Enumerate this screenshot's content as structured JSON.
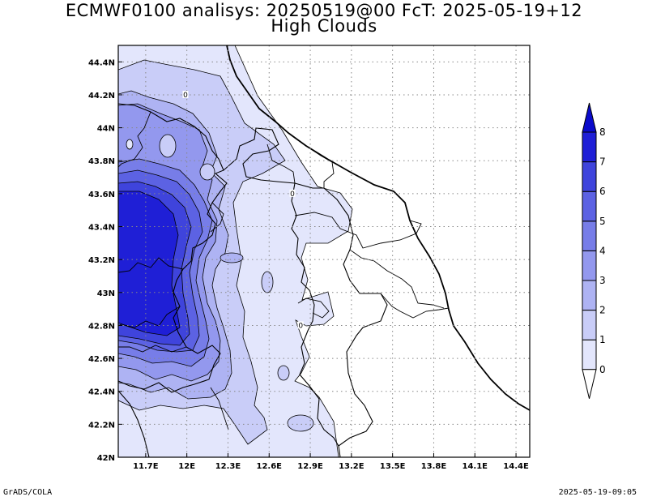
{
  "title": "ECMWF0100 analisys: 20250519@00 FcT: 2025-05-19+12",
  "subtitle": "High Clouds",
  "footer": {
    "left": "GrADS/COLA",
    "right": "2025-05-19-09:05"
  },
  "axes": {
    "lon_min": 11.5,
    "lon_max": 14.5,
    "lat_min": 42.0,
    "lat_max": 44.5,
    "lon_ticks": [
      {
        "value": 11.7,
        "label": "11.7E"
      },
      {
        "value": 12.0,
        "label": "12E"
      },
      {
        "value": 12.3,
        "label": "12.3E"
      },
      {
        "value": 12.6,
        "label": "12.6E"
      },
      {
        "value": 12.9,
        "label": "12.9E"
      },
      {
        "value": 13.2,
        "label": "13.2E"
      },
      {
        "value": 13.5,
        "label": "13.5E"
      },
      {
        "value": 13.8,
        "label": "13.8E"
      },
      {
        "value": 14.1,
        "label": "14.1E"
      },
      {
        "value": 14.4,
        "label": "14.4E"
      }
    ],
    "lat_ticks": [
      {
        "value": 42.0,
        "label": "42N"
      },
      {
        "value": 42.2,
        "label": "42.2N"
      },
      {
        "value": 42.4,
        "label": "42.4N"
      },
      {
        "value": 42.6,
        "label": "42.6N"
      },
      {
        "value": 42.8,
        "label": "42.8N"
      },
      {
        "value": 43.0,
        "label": "43N"
      },
      {
        "value": 43.2,
        "label": "43.2N"
      },
      {
        "value": 43.4,
        "label": "43.4N"
      },
      {
        "value": 43.6,
        "label": "43.6N"
      },
      {
        "value": 43.8,
        "label": "43.8N"
      },
      {
        "value": 44.0,
        "label": "44N"
      },
      {
        "value": 44.2,
        "label": "44.2N"
      },
      {
        "value": 44.4,
        "label": "44.4N"
      }
    ],
    "grid": "dotted"
  },
  "contour_labels": [
    {
      "text": "0",
      "lon": 11.99,
      "lat": 44.2
    },
    {
      "text": "0",
      "lon": 12.77,
      "lat": 43.6
    },
    {
      "text": "0",
      "lon": 12.83,
      "lat": 42.8
    }
  ],
  "colorbar": {
    "levels": [
      "0",
      "1",
      "2",
      "3",
      "4",
      "5",
      "6",
      "7",
      "8"
    ],
    "colors": [
      "#ffffff",
      "#e3e6fc",
      "#c9cdf8",
      "#aeb3f3",
      "#9398ee",
      "#777de8",
      "#5c62e3",
      "#3f44dc",
      "#1f1fd6",
      "#0a0acb"
    ]
  }
}
